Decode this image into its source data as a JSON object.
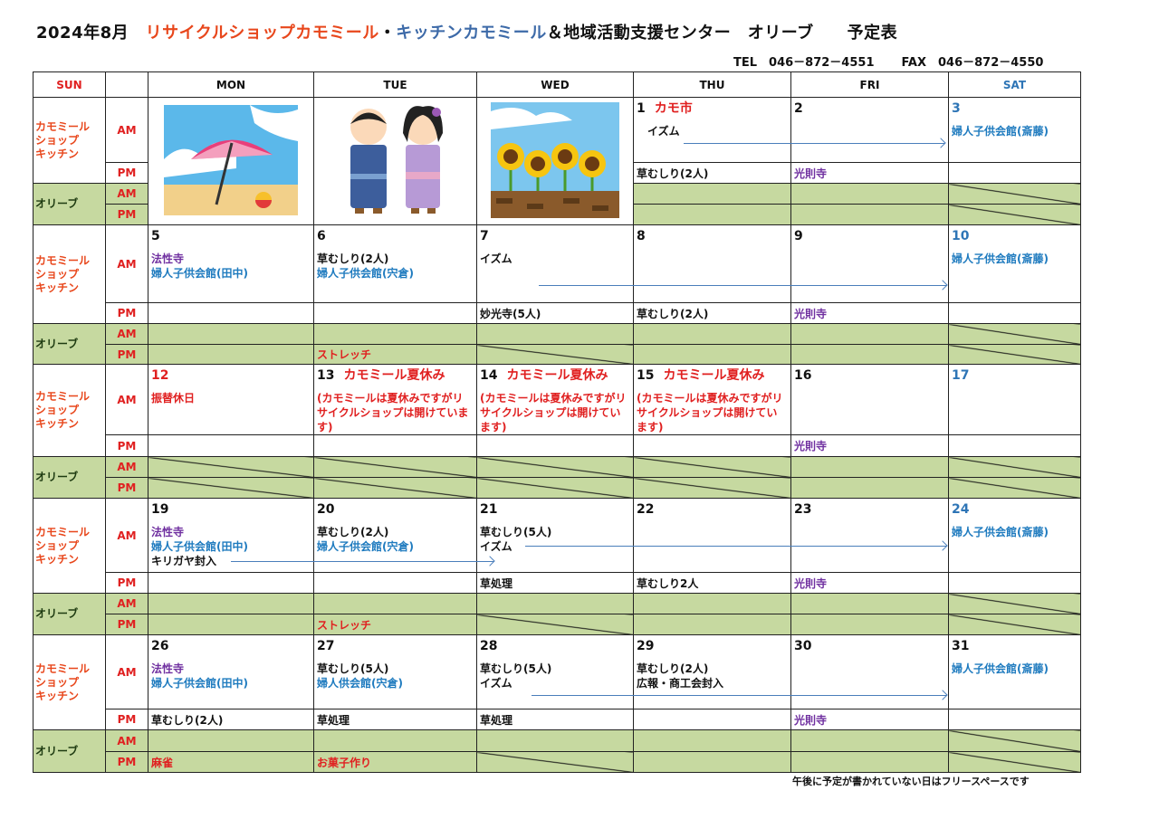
{
  "header": {
    "title_month": "2024年8月",
    "title_shop": "リサイクルショップカモミール",
    "title_sep": "・",
    "title_kitchen": "キッチンカモミール",
    "title_rest": "＆地域活動支援センター　オリーブ　　予定表",
    "tel": "TEL　046－872－4551",
    "fax": "FAX　046－872－4550"
  },
  "colors": {
    "red": "#e02020",
    "title_red": "#e8471c",
    "kitchen_blue": "#3d6aa8",
    "blue": "#1f7bbf",
    "purple": "#7030a0",
    "sat_blue": "#2e75b6",
    "olive_green": "#c6d9a0",
    "black": "#111111"
  },
  "columns": [
    "SUN",
    "",
    "MON",
    "TUE",
    "WED",
    "THU",
    "FRI",
    "SAT"
  ],
  "labels": {
    "kamomile": [
      "カモミール",
      "ショップ",
      "キッチン"
    ],
    "olive": "オリーブ",
    "am": "AM",
    "pm": "PM"
  },
  "weeks": [
    {
      "days": [
        {
          "illustration": "beach-umbrella"
        },
        {
          "illustration": "yukata-kids"
        },
        {
          "illustration": "sunflowers"
        },
        {
          "date": "1",
          "title": "カモ市",
          "am": [
            {
              "text": "　イズム",
              "color": "black"
            }
          ],
          "pm": [
            {
              "text": "草むしり(2人)",
              "color": "black"
            }
          ]
        },
        {
          "date": "2",
          "pm": [
            {
              "text": "光則寺",
              "color": "purple"
            }
          ]
        },
        {
          "date": "3",
          "date_color": "sat_blue",
          "am": [
            {
              "text": "婦人子供会館(斎藤)",
              "color": "blue"
            }
          ],
          "olive_am_closed": true,
          "olive_pm_closed": true
        }
      ]
    },
    {
      "days": [
        {
          "date": "5",
          "am": [
            {
              "text": "法性寺",
              "color": "purple"
            },
            {
              "text": "婦人子供会館(田中)",
              "color": "blue"
            }
          ]
        },
        {
          "date": "6",
          "am": [
            {
              "text": "草むしり(2人)",
              "color": "black"
            },
            {
              "text": "婦人子供会館(宍倉)",
              "color": "blue"
            }
          ],
          "olive_pm": [
            {
              "text": "ストレッチ",
              "color": "red"
            }
          ]
        },
        {
          "date": "7",
          "am": [
            {
              "text": "",
              "color": "black"
            },
            {
              "text": "イズム",
              "color": "black"
            }
          ],
          "pm": [
            {
              "text": "妙光寺(5人)",
              "color": "black"
            }
          ],
          "olive_pm_closed": true
        },
        {
          "date": "8",
          "pm": [
            {
              "text": "草むしり(2人)",
              "color": "black"
            }
          ]
        },
        {
          "date": "9",
          "pm": [
            {
              "text": "光則寺",
              "color": "purple"
            }
          ]
        },
        {
          "date": "10",
          "date_color": "sat_blue",
          "am": [
            {
              "text": "婦人子供会館(斎藤)",
              "color": "blue"
            }
          ],
          "olive_am_closed": true,
          "olive_pm_closed": true
        }
      ]
    },
    {
      "days": [
        {
          "date": "12",
          "date_color": "red",
          "am": [
            {
              "text": "振替休日",
              "color": "red"
            }
          ],
          "olive_am_closed": true,
          "olive_pm_closed": true
        },
        {
          "date": "13",
          "title": "カモミール夏休み",
          "am": [
            {
              "text": "(カモミールは夏休みですがリサイクルショップは開けています)",
              "color": "red"
            }
          ],
          "olive_am_closed": true,
          "olive_pm_closed": true
        },
        {
          "date": "14",
          "title": "カモミール夏休み",
          "am": [
            {
              "text": "(カモミールは夏休みですがリサイクルショップは開けています)",
              "color": "red"
            }
          ],
          "olive_am_closed": true,
          "olive_pm_closed": true
        },
        {
          "date": "15",
          "title": "カモミール夏休み",
          "am": [
            {
              "text": "(カモミールは夏休みですがリサイクルショップは開けています)",
              "color": "red"
            }
          ],
          "olive_am_closed": true,
          "olive_pm_closed": true
        },
        {
          "date": "16",
          "pm": [
            {
              "text": "光則寺",
              "color": "purple"
            }
          ]
        },
        {
          "date": "17",
          "date_color": "sat_blue",
          "olive_am_closed": true,
          "olive_pm_closed": true
        }
      ]
    },
    {
      "days": [
        {
          "date": "19",
          "am": [
            {
              "text": "法性寺",
              "color": "purple"
            },
            {
              "text": "婦人子供会館(田中)",
              "color": "blue"
            },
            {
              "text": "キリガヤ封入",
              "color": "black"
            }
          ]
        },
        {
          "date": "20",
          "am": [
            {
              "text": "草むしり(2人)",
              "color": "black"
            },
            {
              "text": "婦人子供会館(宍倉)",
              "color": "blue"
            }
          ],
          "olive_pm": [
            {
              "text": "ストレッチ",
              "color": "red"
            }
          ]
        },
        {
          "date": "21",
          "am": [
            {
              "text": "草むしり(5人)",
              "color": "black"
            },
            {
              "text": "イズム",
              "color": "black"
            }
          ],
          "pm": [
            {
              "text": "草処理",
              "color": "black"
            }
          ],
          "olive_pm_closed": true
        },
        {
          "date": "22",
          "pm": [
            {
              "text": "草むしり2人",
              "color": "black"
            }
          ]
        },
        {
          "date": "23",
          "pm": [
            {
              "text": "光則寺",
              "color": "purple"
            }
          ]
        },
        {
          "date": "24",
          "date_color": "sat_blue",
          "am": [
            {
              "text": "婦人子供会館(斎藤)",
              "color": "blue"
            }
          ],
          "olive_am_closed": true,
          "olive_pm_closed": true
        }
      ]
    },
    {
      "days": [
        {
          "date": "26",
          "am": [
            {
              "text": "法性寺",
              "color": "purple"
            },
            {
              "text": "婦人子供会館(田中)",
              "color": "blue"
            }
          ],
          "pm": [
            {
              "text": "草むしり(2人)",
              "color": "black"
            }
          ],
          "olive_pm": [
            {
              "text": "麻雀",
              "color": "red"
            }
          ]
        },
        {
          "date": "27",
          "am": [
            {
              "text": "草むしり(5人)",
              "color": "black"
            },
            {
              "text": "婦人供会館(宍倉)",
              "color": "blue"
            }
          ],
          "pm": [
            {
              "text": "草処理",
              "color": "black"
            }
          ],
          "olive_pm": [
            {
              "text": "お菓子作り",
              "color": "red"
            }
          ]
        },
        {
          "date": "28",
          "am": [
            {
              "text": "草むしり(5人)",
              "color": "black"
            },
            {
              "text": "イズム",
              "color": "black"
            }
          ],
          "pm": [
            {
              "text": "草処理",
              "color": "black"
            }
          ],
          "olive_pm_closed": true
        },
        {
          "date": "29",
          "am": [
            {
              "text": "草むしり(2人)",
              "color": "black"
            },
            {
              "text": "広報・商工会封入",
              "color": "black"
            }
          ]
        },
        {
          "date": "30",
          "pm": [
            {
              "text": "光則寺",
              "color": "purple"
            }
          ]
        },
        {
          "date": "31",
          "am": [
            {
              "text": "婦人子供会館(斎藤)",
              "color": "blue"
            }
          ],
          "olive_am_closed": true,
          "olive_pm_closed": true
        }
      ]
    }
  ],
  "footer_note": "午後に予定が書かれていない日はフリースペースです"
}
